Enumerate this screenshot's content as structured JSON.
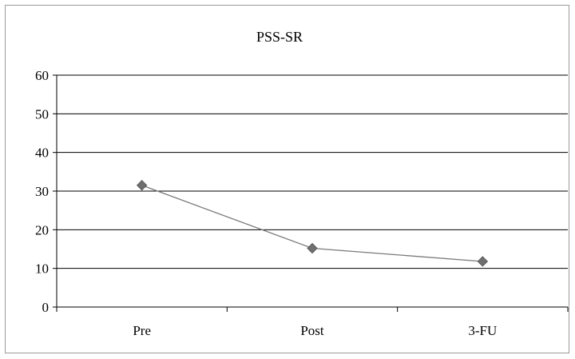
{
  "chart_data": {
    "type": "line",
    "title": "PSS-SR",
    "categories": [
      "Pre",
      "Post",
      "3-FU"
    ],
    "series": [
      {
        "values": [
          31.5,
          15.2,
          11.8
        ],
        "color": "#7a7a7a",
        "marker": "diamond"
      }
    ],
    "ylim": [
      0,
      60
    ],
    "yticks": [
      0,
      10,
      20,
      30,
      40,
      50,
      60
    ],
    "ytick_labels": [
      "0",
      "10",
      "20",
      "30",
      "40",
      "50",
      "60"
    ],
    "grid": true,
    "legend": "none"
  }
}
